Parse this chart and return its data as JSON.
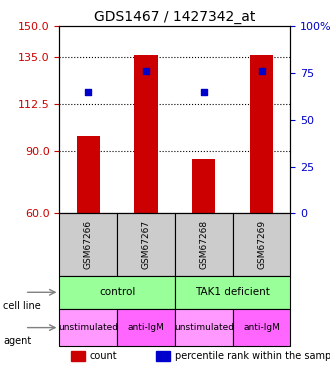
{
  "title": "GDS1467 / 1427342_at",
  "samples": [
    "GSM67266",
    "GSM67267",
    "GSM67268",
    "GSM67269"
  ],
  "counts": [
    97,
    136,
    86,
    136
  ],
  "percentiles": [
    65,
    76,
    65,
    76
  ],
  "ylim_left": [
    60,
    150
  ],
  "ylim_right": [
    0,
    100
  ],
  "yticks_left": [
    60,
    90,
    112.5,
    135,
    150
  ],
  "yticks_right": [
    0,
    25,
    50,
    75,
    100
  ],
  "bar_color": "#cc0000",
  "dot_color": "#0000cc",
  "cell_line_labels": [
    "control",
    "TAK1 deficient"
  ],
  "cell_line_spans": [
    [
      0,
      2
    ],
    [
      2,
      4
    ]
  ],
  "cell_line_color": "#99ff99",
  "agent_labels": [
    "unstimulated",
    "anti-IgM",
    "unstimulated",
    "anti-IgM"
  ],
  "agent_colors": [
    "#ff99ff",
    "#ff66ff",
    "#ff99ff",
    "#ff66ff"
  ],
  "sample_box_color": "#cccccc",
  "grid_color": "#000000",
  "left_tick_color": "#cc0000",
  "right_tick_color": "#0000cc",
  "bar_width": 0.4,
  "base_value": 60,
  "legend_count_color": "#cc0000",
  "legend_pct_color": "#0000cc"
}
